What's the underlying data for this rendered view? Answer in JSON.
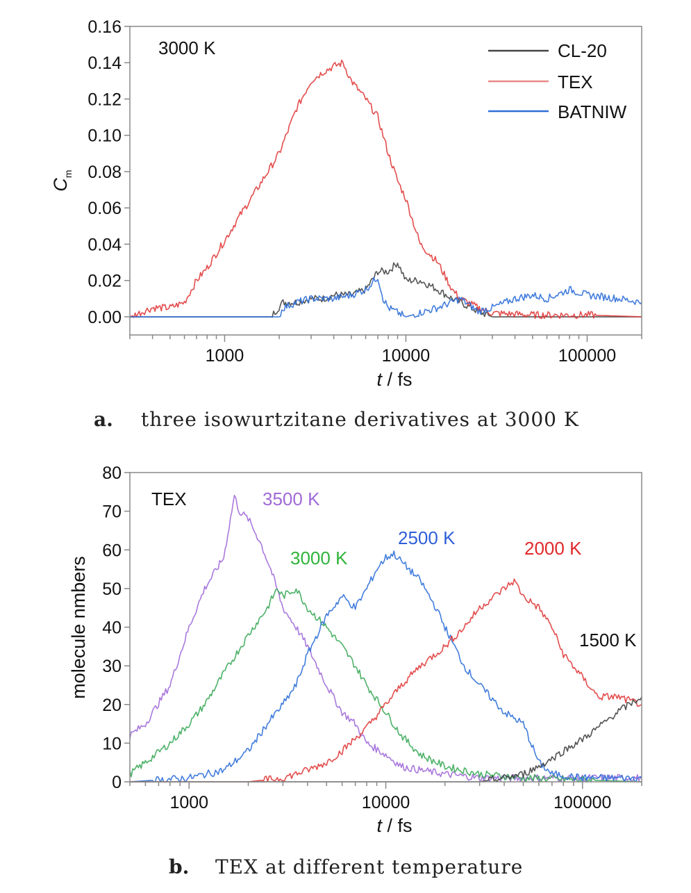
{
  "chart_data": [
    {
      "type": "line",
      "title": "",
      "panel_label": "a.",
      "caption": "three isowurtzitane derivatives at 3000 K",
      "xlabel_italic": "t",
      "xlabel_rest": " / fs",
      "ylabel_main": "C",
      "ylabel_sub": "m",
      "x_scale": "log",
      "xlim": [
        300,
        200000
      ],
      "ylim": [
        -0.01,
        0.16
      ],
      "x_ticks": [
        "1000",
        "10000",
        "100000"
      ],
      "y_ticks": [
        "0.00",
        "0.02",
        "0.04",
        "0.06",
        "0.08",
        "0.10",
        "0.12",
        "0.14",
        "0.16"
      ],
      "annotation": "3000 K",
      "legend_position": "top-right",
      "grid": false,
      "series": [
        {
          "name": "CL-20",
          "color": "#444444",
          "x": [
            300,
            1800,
            2100,
            2500,
            3000,
            3500,
            4000,
            5000,
            6000,
            6500,
            7000,
            8000,
            9000,
            10000,
            12000,
            15000,
            18000,
            20000,
            25000,
            30000,
            50000,
            200000
          ],
          "y": [
            0,
            0,
            0.008,
            0.008,
            0.01,
            0.01,
            0.012,
            0.012,
            0.015,
            0.02,
            0.025,
            0.025,
            0.03,
            0.02,
            0.02,
            0.015,
            0.01,
            0.008,
            0.003,
            0,
            0,
            0
          ]
        },
        {
          "name": "TEX",
          "color": "#e03a3a",
          "x": [
            300,
            400,
            500,
            600,
            700,
            800,
            1000,
            1200,
            1500,
            2000,
            2500,
            3000,
            3500,
            4000,
            4500,
            5000,
            6000,
            7000,
            8000,
            9000,
            10000,
            12000,
            15000,
            18000,
            20000,
            25000,
            30000,
            50000,
            100000,
            200000
          ],
          "y": [
            0,
            0.005,
            0.005,
            0.008,
            0.02,
            0.027,
            0.042,
            0.055,
            0.07,
            0.09,
            0.115,
            0.13,
            0.135,
            0.138,
            0.14,
            0.13,
            0.12,
            0.11,
            0.09,
            0.075,
            0.065,
            0.04,
            0.03,
            0.015,
            0.01,
            0.005,
            0.002,
            0.001,
            0.001,
            0
          ]
        },
        {
          "name": "BATNIW",
          "color": "#2e6fd8",
          "x": [
            300,
            2000,
            2100,
            2500,
            3000,
            4000,
            5000,
            6000,
            7000,
            7500,
            8000,
            10000,
            15000,
            20000,
            25000,
            30000,
            40000,
            50000,
            60000,
            80000,
            100000,
            150000,
            200000
          ],
          "y": [
            0,
            0,
            0.005,
            0.008,
            0.01,
            0.01,
            0.012,
            0.015,
            0.022,
            0.01,
            0.005,
            0,
            0.005,
            0.01,
            0.003,
            0.005,
            0.01,
            0.012,
            0.01,
            0.015,
            0.012,
            0.01,
            0.008
          ]
        }
      ]
    },
    {
      "type": "line",
      "title": "",
      "panel_label": "b.",
      "caption": "TEX at different temperature",
      "xlabel_italic": "t",
      "xlabel_rest": " / fs",
      "ylabel": "molecule nmbers",
      "x_scale": "log",
      "xlim": [
        500,
        200000
      ],
      "ylim": [
        0,
        80
      ],
      "x_ticks": [
        "1000",
        "10000",
        "100000"
      ],
      "y_ticks": [
        "0",
        "10",
        "20",
        "30",
        "40",
        "50",
        "60",
        "70",
        "80"
      ],
      "annotation": "TEX",
      "grid": false,
      "series": [
        {
          "name": "3500 K",
          "color": "#a06ad8",
          "x": [
            500,
            600,
            800,
            1000,
            1200,
            1500,
            1700,
            1800,
            2000,
            2300,
            2600,
            3000,
            3500,
            4000,
            5000,
            6000,
            7000,
            8000,
            10000,
            12000,
            15000,
            20000,
            30000,
            50000,
            100000,
            200000
          ],
          "y": [
            12,
            15,
            25,
            40,
            50,
            58,
            74,
            70,
            68,
            62,
            55,
            45,
            40,
            35,
            25,
            18,
            15,
            10,
            7,
            4,
            3,
            2,
            1,
            1,
            1,
            1
          ]
        },
        {
          "name": "3000 K",
          "color": "#3aa858",
          "x": [
            500,
            600,
            800,
            1000,
            1200,
            1500,
            2000,
            2500,
            2800,
            3000,
            3500,
            4000,
            5000,
            6000,
            7000,
            8000,
            10000,
            12000,
            15000,
            20000,
            30000,
            50000,
            200000
          ],
          "y": [
            2,
            5,
            10,
            15,
            20,
            28,
            38,
            45,
            50,
            48,
            50,
            45,
            40,
            35,
            30,
            25,
            18,
            12,
            7,
            4,
            2,
            1,
            0
          ]
        },
        {
          "name": "2500 K",
          "color": "#2e6fd8",
          "x": [
            500,
            1000,
            1500,
            2000,
            2500,
            3000,
            3500,
            4000,
            5000,
            6000,
            7000,
            8000,
            9000,
            10000,
            11000,
            12000,
            15000,
            18000,
            20000,
            25000,
            30000,
            40000,
            50000,
            60000,
            70000,
            100000,
            200000
          ],
          "y": [
            0,
            1,
            3,
            8,
            15,
            20,
            25,
            33,
            43,
            48,
            45,
            50,
            55,
            58,
            59,
            57,
            52,
            45,
            40,
            30,
            25,
            18,
            15,
            5,
            2,
            1,
            1
          ]
        },
        {
          "name": "2000 K",
          "color": "#e03a3a",
          "x": [
            500,
            2000,
            3000,
            4000,
            5000,
            6000,
            8000,
            10000,
            12000,
            15000,
            20000,
            25000,
            30000,
            40000,
            45000,
            50000,
            60000,
            70000,
            80000,
            100000,
            120000,
            150000,
            200000
          ],
          "y": [
            0,
            0,
            1,
            3,
            5,
            8,
            14,
            20,
            25,
            30,
            35,
            40,
            45,
            50,
            52,
            48,
            45,
            40,
            33,
            27,
            22,
            22,
            20
          ]
        },
        {
          "name": "1500 K",
          "color": "#404040",
          "x": [
            500,
            20000,
            30000,
            40000,
            50000,
            60000,
            70000,
            80000,
            100000,
            120000,
            150000,
            200000
          ],
          "y": [
            0,
            0,
            0,
            1,
            2,
            4,
            6,
            8,
            11,
            14,
            18,
            22
          ]
        }
      ]
    }
  ]
}
